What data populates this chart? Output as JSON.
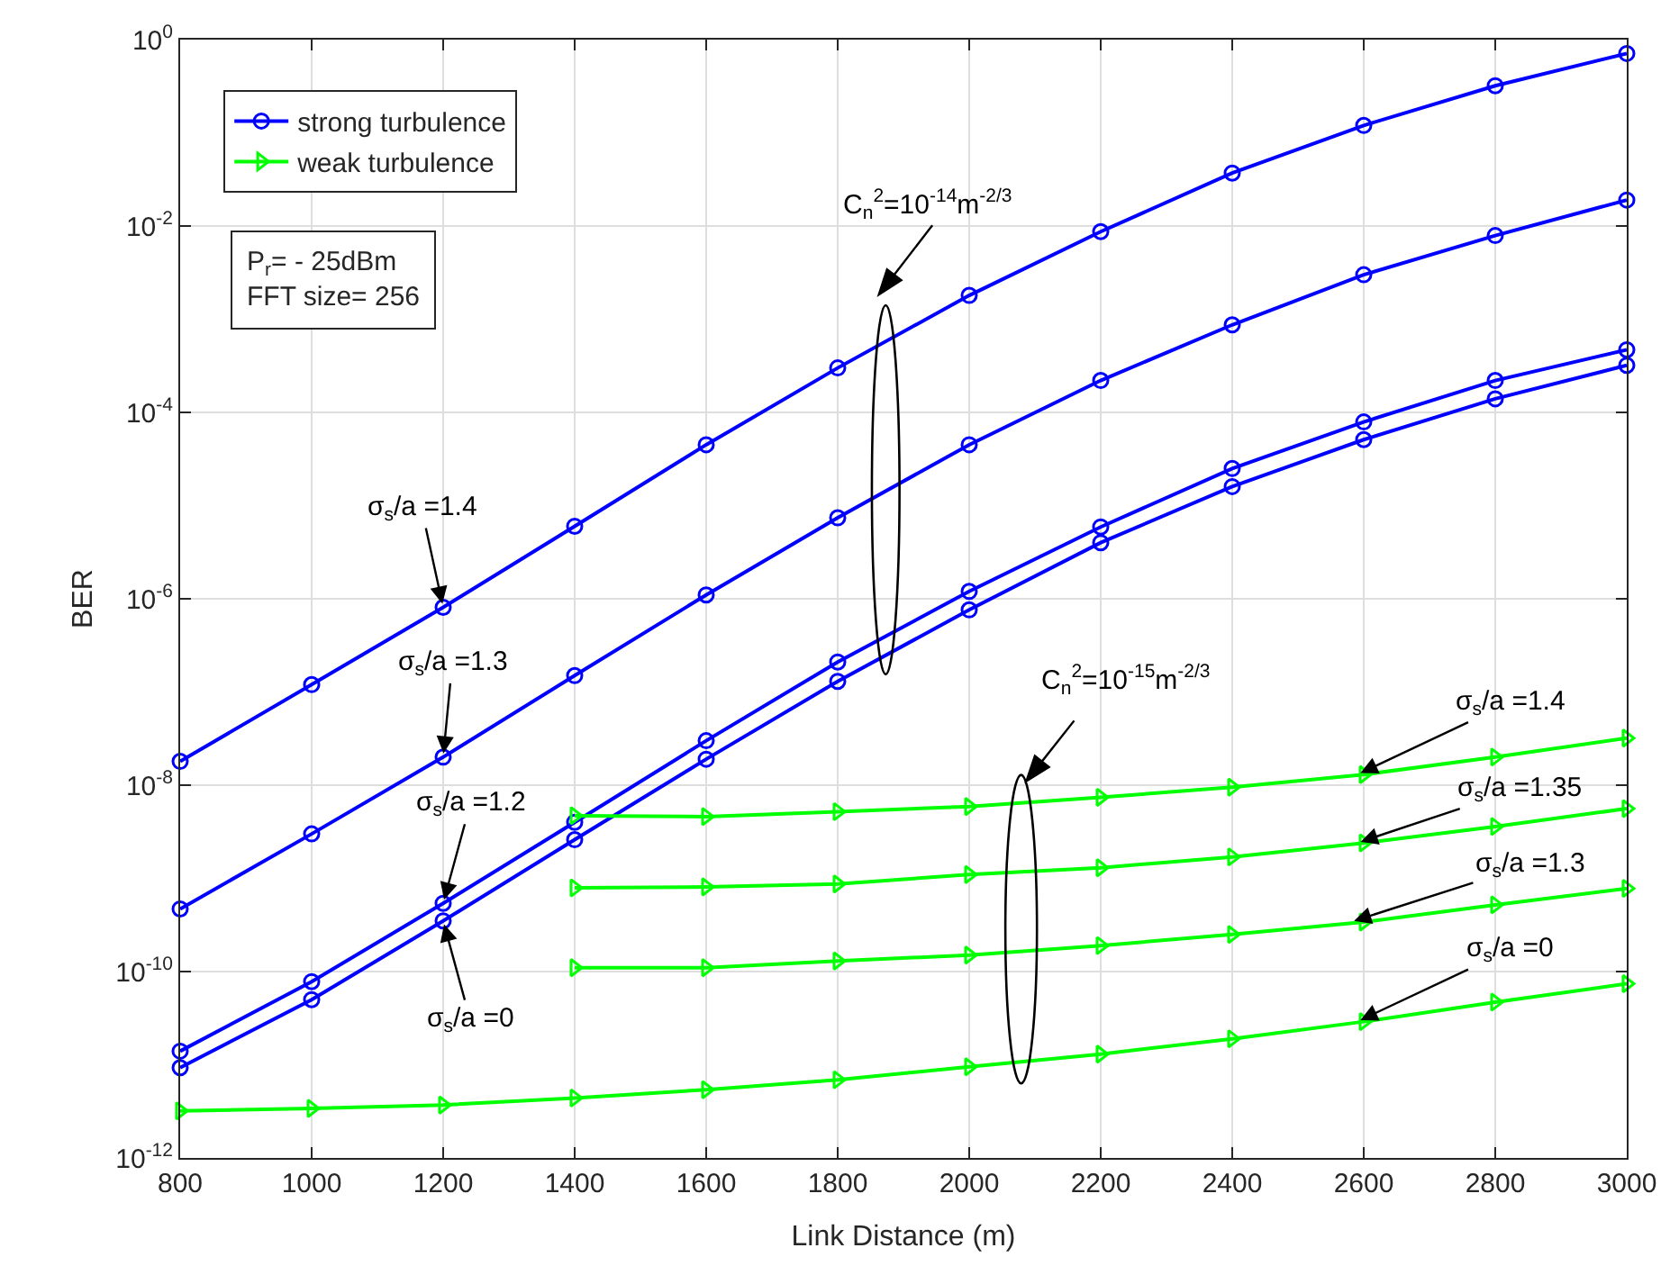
{
  "chart_data": {
    "type": "line",
    "xlabel": "Link Distance (m)",
    "ylabel": "BER",
    "log": "y",
    "grid": true,
    "legend": "top left",
    "line_style": "solid",
    "xlim": [
      800,
      3000
    ],
    "xticks": [
      800,
      1000,
      1200,
      1400,
      1600,
      1800,
      2000,
      2200,
      2400,
      2600,
      2800,
      3000
    ],
    "ylim": [
      1e-12,
      1
    ],
    "yticks": [
      {
        "value": 1e-12,
        "label": "10$^{-12}$"
      },
      {
        "value": 1e-10,
        "label": "10$^{-10}$"
      },
      {
        "value": 1e-08,
        "label": "10$^{-8}$"
      },
      {
        "value": 1e-06,
        "label": "10$^{-6}$"
      },
      {
        "value": 0.0001,
        "label": "10$^{-4}$"
      },
      {
        "value": 0.01,
        "label": "10$^{-2}$"
      },
      {
        "value": 1,
        "label": "10$^{0}$"
      }
    ],
    "series": [
      {
        "name": "strong turbulence",
        "color": "#0000ff",
        "marker": "circle",
        "x": [
          800,
          1000,
          1200,
          1400,
          1600,
          1800,
          2000,
          2200,
          2400,
          2600,
          2800,
          3000
        ],
        "values": [
          1.8e-08,
          1.2e-07,
          8.1e-07,
          6e-06,
          4.5e-05,
          0.0003,
          0.0018,
          0.0087,
          0.037,
          0.12,
          0.32,
          0.71
        ]
      },
      {
        "color": "#0000ff",
        "marker": "circle",
        "x": [
          800,
          1000,
          1200,
          1400,
          1600,
          1800,
          2000,
          2200,
          2400,
          2600,
          2800,
          3000
        ],
        "values": [
          4.7e-10,
          3e-09,
          2e-08,
          1.5e-07,
          1.1e-06,
          7.4e-06,
          4.5e-05,
          0.00022,
          0.00087,
          0.003,
          0.0079,
          0.019
        ]
      },
      {
        "color": "#0000ff",
        "marker": "circle",
        "x": [
          800,
          1000,
          1200,
          1400,
          1600,
          1800,
          2000,
          2200,
          2400,
          2600,
          2800,
          3000
        ],
        "values": [
          1.4e-11,
          7.8e-11,
          5.4e-10,
          4e-09,
          3e-08,
          2.1e-07,
          1.2e-06,
          5.9e-06,
          2.5e-05,
          7.9e-05,
          0.00022,
          0.00047
        ]
      },
      {
        "color": "#0000ff",
        "marker": "circle",
        "x": [
          800,
          1000,
          1200,
          1400,
          1600,
          1800,
          2000,
          2200,
          2400,
          2600,
          2800,
          3000
        ],
        "values": [
          9.3e-12,
          5e-11,
          3.5e-10,
          2.6e-09,
          1.9e-08,
          1.3e-07,
          7.6e-07,
          4e-06,
          1.6e-05,
          5.1e-05,
          0.00014,
          0.00032
        ]
      },
      {
        "name": "weak turbulence",
        "color": "#00ff00",
        "marker": "triangle",
        "x": [
          1400,
          1600,
          1800,
          2000,
          2200,
          2400,
          2600,
          2800,
          3000
        ],
        "values": [
          4.7e-09,
          4.6e-09,
          5.2e-09,
          5.9e-09,
          7.4e-09,
          9.5e-09,
          1.3e-08,
          2e-08,
          3.2e-08
        ]
      },
      {
        "color": "#00ff00",
        "marker": "triangle",
        "x": [
          1400,
          1600,
          1800,
          2000,
          2200,
          2400,
          2600,
          2800,
          3000
        ],
        "values": [
          7.9e-10,
          8.1e-10,
          8.7e-10,
          1.1e-09,
          1.3e-09,
          1.7e-09,
          2.4e-09,
          3.6e-09,
          5.6e-09
        ]
      },
      {
        "color": "#00ff00",
        "marker": "triangle",
        "x": [
          1400,
          1600,
          1800,
          2000,
          2200,
          2400,
          2600,
          2800,
          3000
        ],
        "values": [
          1.1e-10,
          1.1e-10,
          1.3e-10,
          1.5e-10,
          1.9e-10,
          2.5e-10,
          3.4e-10,
          5.2e-10,
          7.8e-10
        ]
      },
      {
        "color": "#00ff00",
        "marker": "triangle",
        "x": [
          800,
          1000,
          1200,
          1400,
          1600,
          1800,
          2000,
          2200,
          2400,
          2600,
          2800,
          3000
        ],
        "values": [
          3.2e-12,
          3.4e-12,
          3.7e-12,
          4.4e-12,
          5.4e-12,
          6.9e-12,
          9.5e-12,
          1.3e-11,
          1.9e-11,
          2.9e-11,
          4.7e-11,
          7.4e-11
        ]
      }
    ],
    "annotations": [
      "P$_{r}$= - 25dBm",
      "FFT size= 256",
      {
        "text": "σ$_{s}$/a =1.4",
        "x": 1200,
        "y": 8.1e-07
      },
      {
        "text": "σ$_{s}$/a =1.3",
        "x": 1200,
        "y": 2e-08
      },
      {
        "text": "σ$_{s}$/a =1.2",
        "x": 1200,
        "y": 5.4e-10
      },
      {
        "text": "σ$_{s}$/a =0",
        "x": 1200,
        "y": 3.5e-10
      },
      "C$_{n}$$^{2}$=10$^{-14}$m$^{-2/3}$",
      "C$_{n}$$^{2}$=10$^{-15}$m$^{-2/3}$",
      {
        "text": "σ$_{s}$/a =1.4",
        "x": 2590,
        "y": 1.3e-08
      },
      {
        "text": "σ$_{s}$/a =1.35",
        "x": 2590,
        "y": 2.4e-09
      },
      {
        "text": "σ$_{s}$/a =1.3",
        "x": 2580,
        "y": 3.4e-10
      },
      {
        "text": "σ$_{s}$/a =0",
        "x": 2590,
        "y": 2.9e-11
      }
    ]
  }
}
